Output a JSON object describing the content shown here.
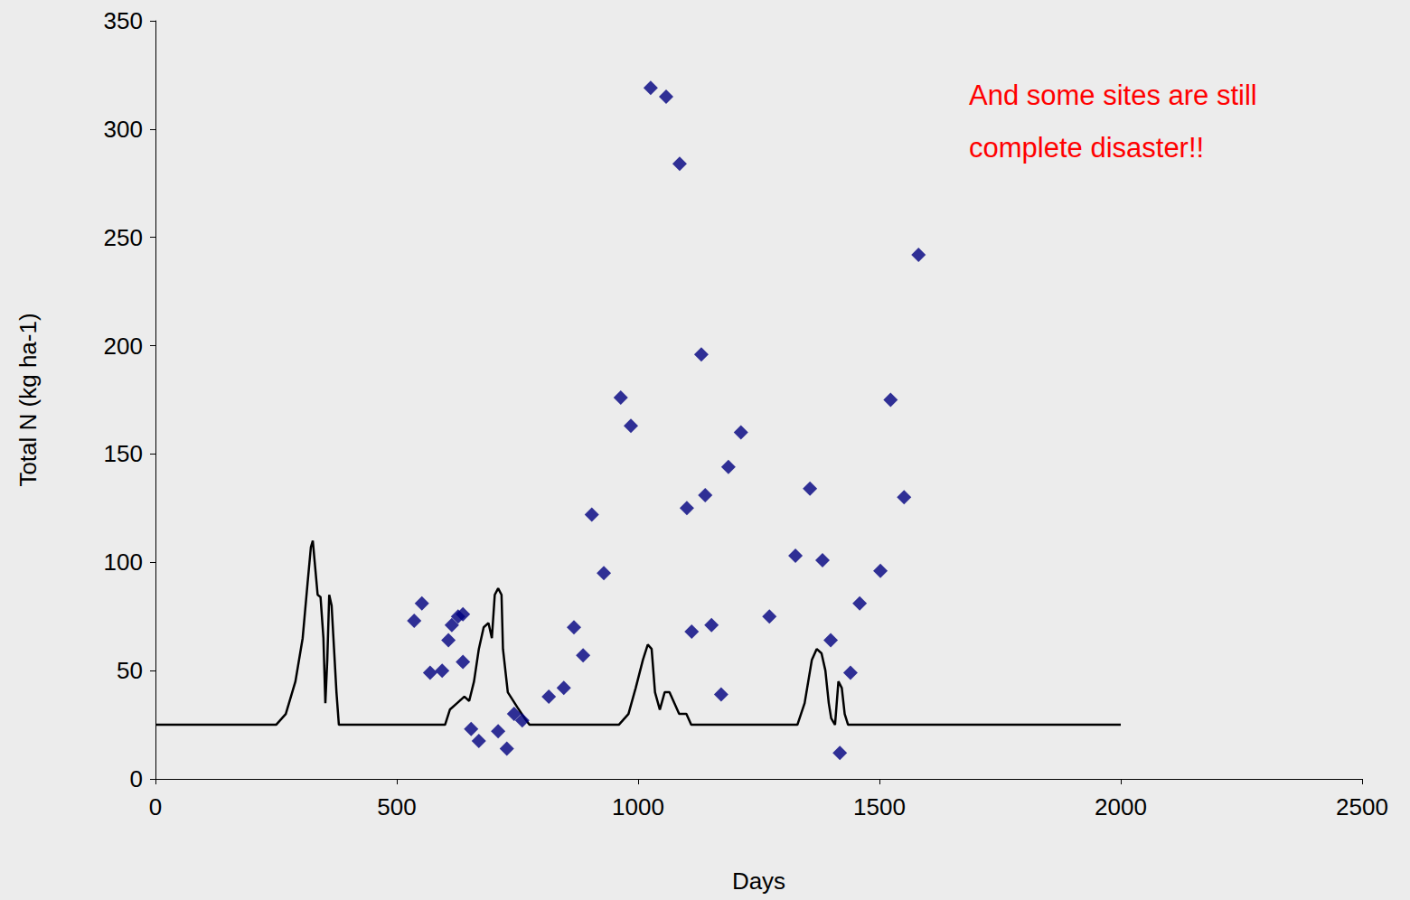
{
  "chart_data": {
    "type": "scatter",
    "xlabel": "Days",
    "ylabel": "Total N (kg ha-1)",
    "annotation": [
      "And some sites are still",
      "complete disaster!!"
    ],
    "xlim": [
      0,
      2500
    ],
    "xticks": [
      0,
      500,
      1000,
      1500,
      2000,
      2500
    ],
    "ylim": [
      0,
      350
    ],
    "yticks": [
      0,
      50,
      100,
      150,
      200,
      250,
      300,
      350
    ],
    "grid": false,
    "series": [
      {
        "type": "line",
        "color": "#000000",
        "line_style": "solid",
        "x": [
          0,
          250,
          270,
          290,
          305,
          315,
          322,
          326,
          330,
          336,
          342,
          348,
          352,
          356,
          360,
          365,
          370,
          375,
          380,
          600,
          610,
          625,
          640,
          650,
          660,
          670,
          680,
          690,
          697,
          703,
          710,
          717,
          720,
          730,
          750,
          765,
          775,
          960,
          980,
          995,
          1010,
          1020,
          1028,
          1035,
          1045,
          1055,
          1065,
          1075,
          1085,
          1100,
          1110,
          1330,
          1345,
          1360,
          1370,
          1380,
          1388,
          1395,
          1400,
          1408,
          1415,
          1422,
          1428,
          1435,
          2000
        ],
        "values": [
          25,
          25,
          30,
          45,
          65,
          90,
          107,
          110,
          100,
          85,
          84,
          65,
          35,
          55,
          85,
          80,
          60,
          40,
          25,
          25,
          32,
          35,
          38,
          36,
          45,
          60,
          70,
          72,
          65,
          85,
          88,
          85,
          60,
          40,
          33,
          28,
          25,
          25,
          30,
          42,
          55,
          62,
          60,
          40,
          32,
          40,
          40,
          35,
          30,
          30,
          25,
          25,
          35,
          55,
          60,
          58,
          50,
          35,
          28,
          25,
          45,
          42,
          30,
          25,
          25
        ]
      },
      {
        "type": "scatter",
        "color": "#000080",
        "marker": "diamond",
        "x": [
          536,
          552,
          569,
          594,
          607,
          614,
          627,
          637,
          637,
          654,
          670,
          710,
          728,
          743,
          760,
          815,
          846,
          867,
          886,
          904,
          929,
          964,
          985,
          1026,
          1058,
          1086,
          1101,
          1111,
          1131,
          1139,
          1152,
          1172,
          1187,
          1213,
          1272,
          1326,
          1356,
          1382,
          1399,
          1418,
          1440,
          1459,
          1502,
          1523,
          1551,
          1581
        ],
        "values": [
          73,
          81,
          49,
          50,
          64,
          71,
          75,
          76,
          54,
          23,
          17.5,
          22,
          14,
          30,
          27,
          38,
          42,
          70,
          57,
          122,
          95,
          176,
          163,
          319,
          315,
          284,
          125,
          68,
          196,
          131,
          71,
          39,
          144,
          160,
          75,
          103,
          134,
          101,
          64,
          12,
          49,
          81,
          96,
          175,
          130,
          242
        ]
      }
    ]
  }
}
